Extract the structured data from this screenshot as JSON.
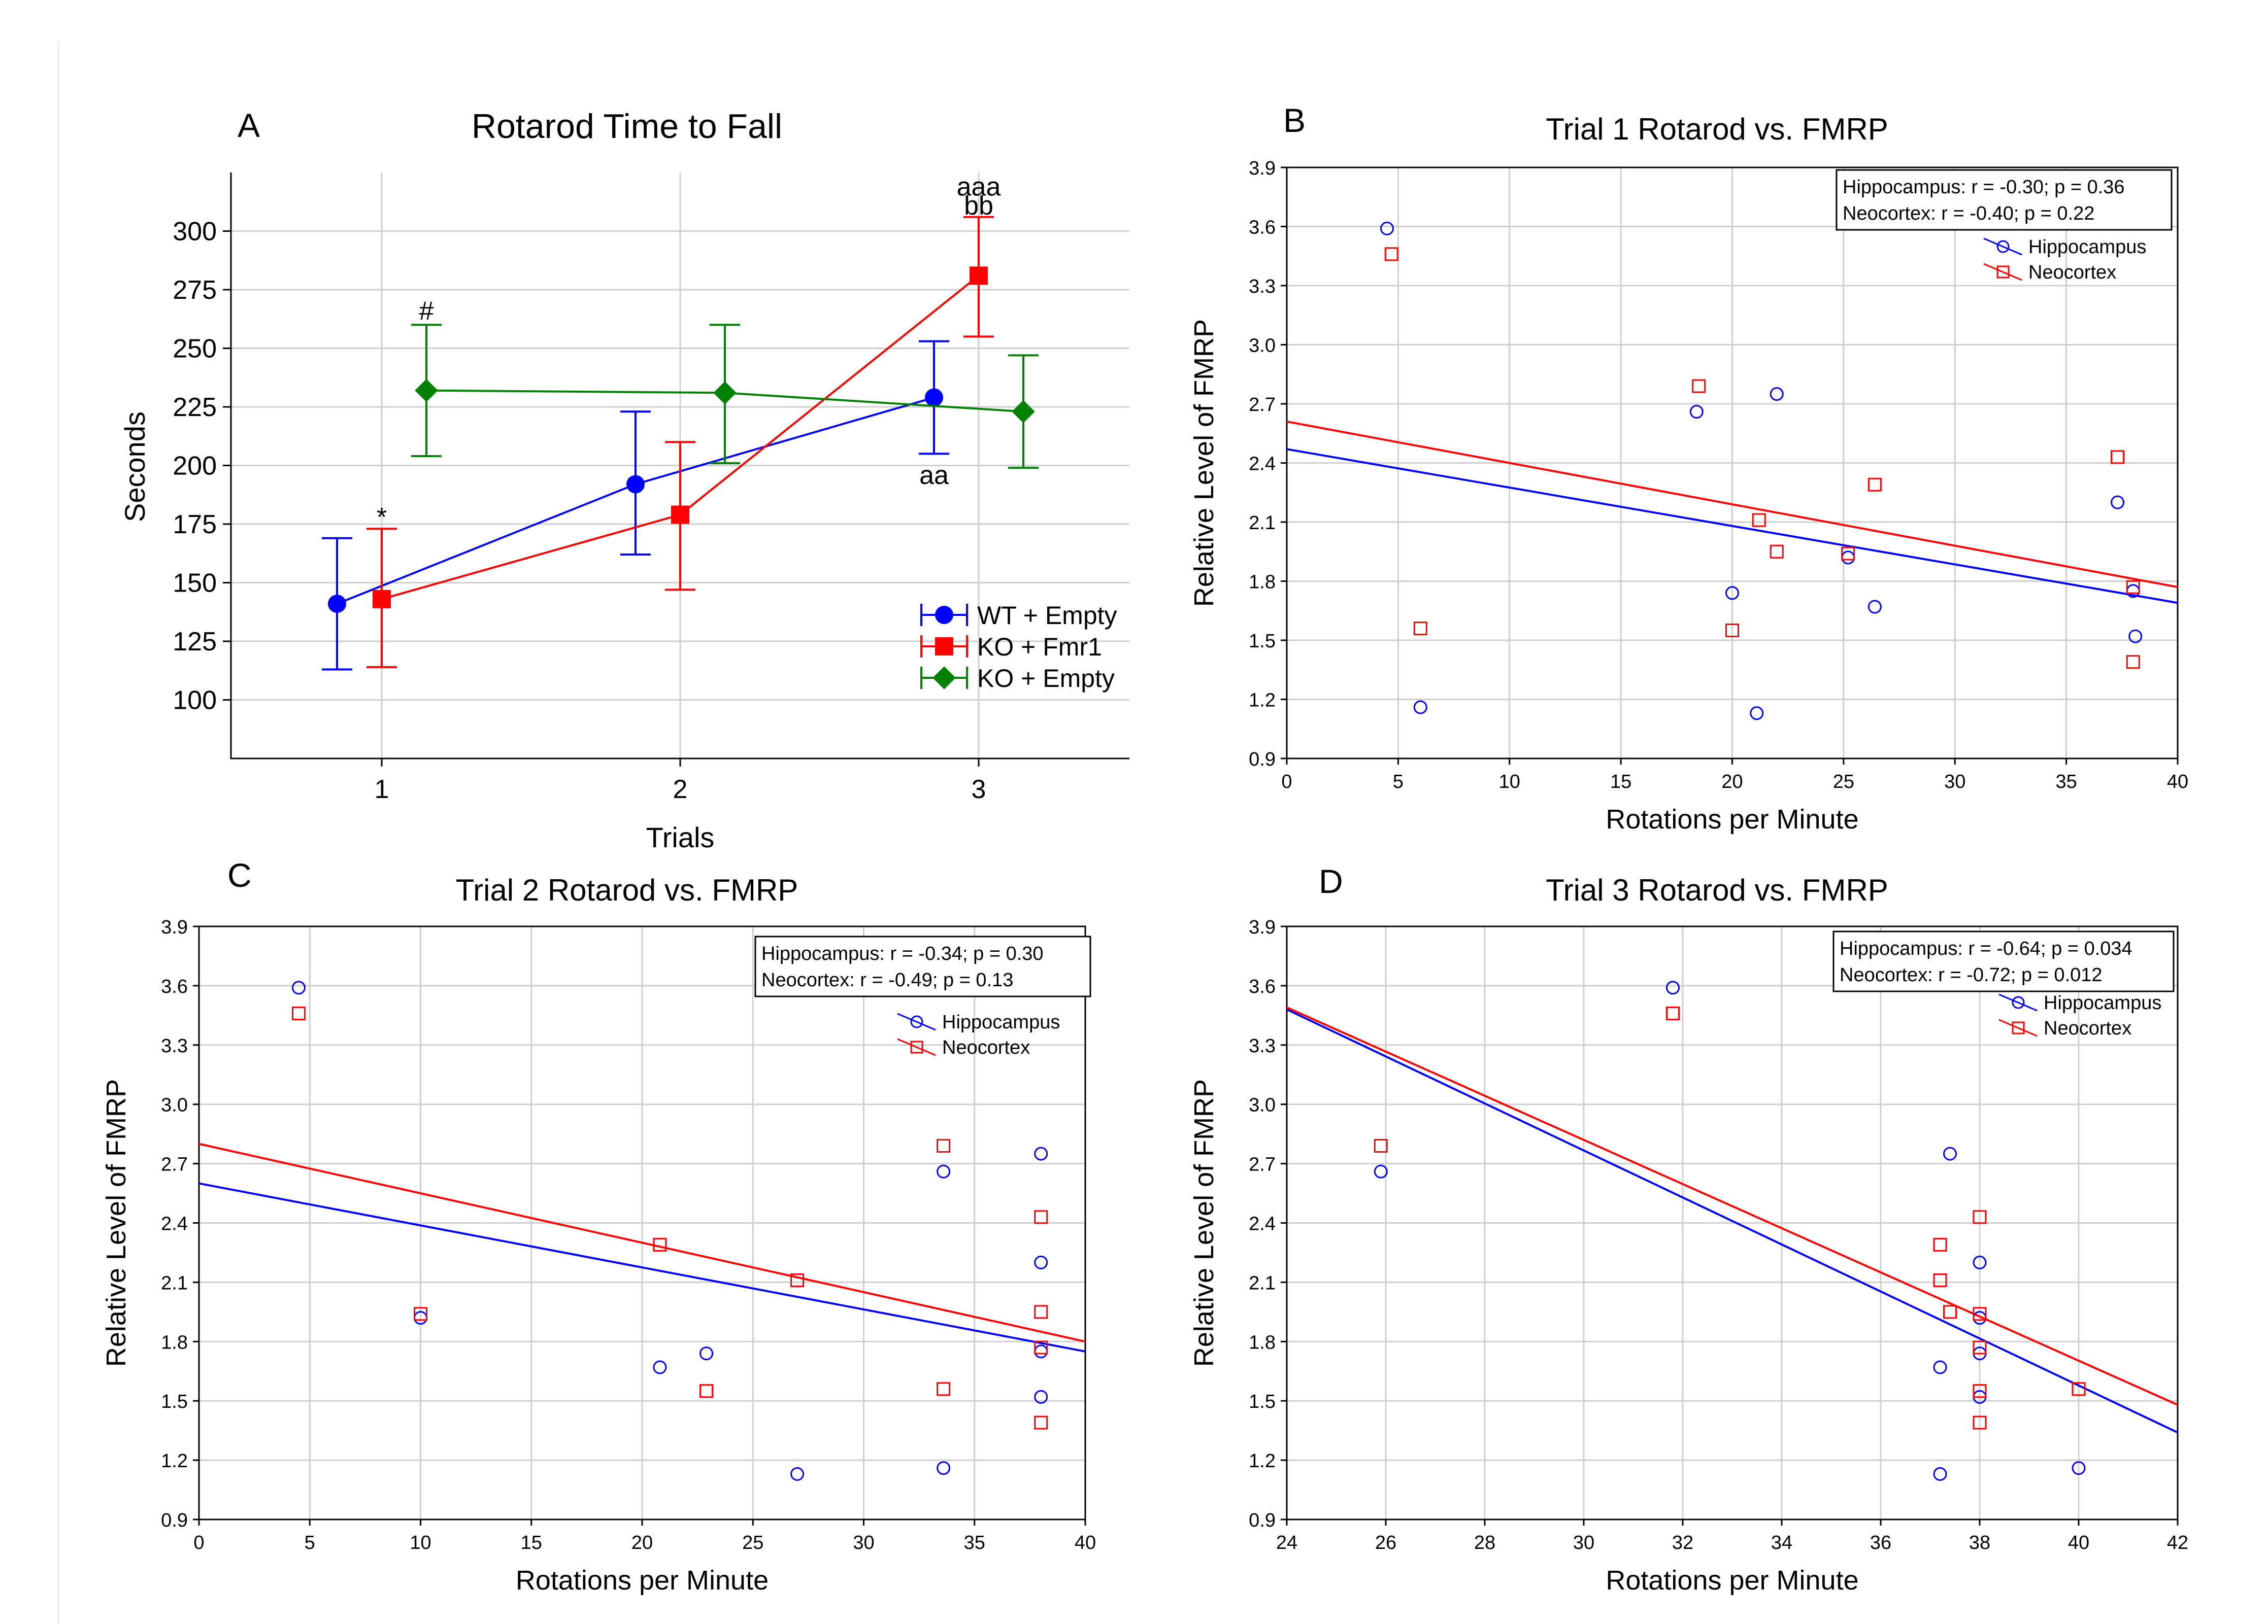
{
  "chart_data": [
    {
      "panel": "A",
      "type": "line",
      "title": "Rotarod Time to Fall",
      "xlabel": "Trials",
      "ylabel": "Seconds",
      "categories": [
        "1",
        "2",
        "3"
      ],
      "ylim": [
        75,
        325
      ],
      "yticks": [
        100,
        125,
        150,
        175,
        200,
        225,
        250,
        275,
        300
      ],
      "grid": true,
      "legend_position": "bottom-right",
      "series": [
        {
          "name": "WT + Empty",
          "color": "#0000ff",
          "marker": "circle",
          "values": [
            141,
            192,
            229
          ],
          "err_low": [
            113,
            162,
            205
          ],
          "err_high": [
            169,
            223,
            253
          ]
        },
        {
          "name": "KO + Fmr1",
          "color": "#ff0000",
          "marker": "square",
          "values": [
            143,
            179,
            281
          ],
          "err_low": [
            114,
            147,
            255
          ],
          "err_high": [
            173,
            210,
            306
          ]
        },
        {
          "name": "KO + Empty",
          "color": "#008000",
          "marker": "diamond",
          "values": [
            232,
            231,
            223
          ],
          "err_low": [
            204,
            201,
            199
          ],
          "err_high": [
            260,
            260,
            247
          ]
        }
      ],
      "annotations": [
        {
          "text": "#",
          "category": 1,
          "series": "KO + Empty",
          "y": 266
        },
        {
          "text": "*",
          "category": 1,
          "series": "KO + Fmr1",
          "y": 178
        },
        {
          "text": "aaa",
          "category": 3,
          "series": "KO + Fmr1",
          "y": 319
        },
        {
          "text": "bb",
          "category": 3,
          "series": "KO + Fmr1",
          "y": 311
        },
        {
          "text": "aa",
          "category": 3,
          "series": "WT + Empty",
          "y": 196
        }
      ]
    },
    {
      "panel": "B",
      "type": "scatter",
      "title": "Trial 1 Rotarod vs. FMRP",
      "xlabel": "Rotations per Minute",
      "ylabel": "Relative Level of FMRP",
      "xlim": [
        0,
        40
      ],
      "xticks": [
        0,
        5,
        10,
        15,
        20,
        25,
        30,
        35,
        40
      ],
      "ylim": [
        0.9,
        3.9
      ],
      "yticks": [
        "0.9",
        "1.2",
        "1.5",
        "1.8",
        "2.1",
        "2.4",
        "2.7",
        "3.0",
        "3.3",
        "3.6",
        "3.9"
      ],
      "grid": true,
      "legend_position": "top-right",
      "stats": [
        "Hippocampus: r = -0.30; p = 0.36",
        "Neocortex:      r = -0.40; p = 0.22"
      ],
      "series": [
        {
          "name": "Hippocampus",
          "color": "#0000ff",
          "marker": "circle",
          "x": [
            4.5,
            6.0,
            18.4,
            20.0,
            21.1,
            22.0,
            25.2,
            26.4,
            37.3,
            38.0,
            38.1
          ],
          "y": [
            3.59,
            1.16,
            2.66,
            1.74,
            1.13,
            2.75,
            1.92,
            1.67,
            2.2,
            1.75,
            1.52
          ],
          "fit": {
            "x": [
              0,
              40
            ],
            "y": [
              2.47,
              1.69
            ]
          }
        },
        {
          "name": "Neocortex",
          "color": "#ff0000",
          "marker": "square",
          "x": [
            4.7,
            6.0,
            18.5,
            20.0,
            21.2,
            22.0,
            25.2,
            26.4,
            37.3,
            38.0,
            38.0
          ],
          "y": [
            3.46,
            1.56,
            2.79,
            1.55,
            2.11,
            1.95,
            1.94,
            2.29,
            2.43,
            1.77,
            1.39
          ],
          "fit": {
            "x": [
              0,
              40
            ],
            "y": [
              2.61,
              1.77
            ]
          }
        }
      ]
    },
    {
      "panel": "C",
      "type": "scatter",
      "title": "Trial 2 Rotarod vs. FMRP",
      "xlabel": "Rotations per Minute",
      "ylabel": "Relative Level of FMRP",
      "xlim": [
        0,
        40
      ],
      "xticks": [
        0,
        5,
        10,
        15,
        20,
        25,
        30,
        35,
        40
      ],
      "ylim": [
        0.9,
        3.9
      ],
      "yticks": [
        "0.9",
        "1.2",
        "1.5",
        "1.8",
        "2.1",
        "2.4",
        "2.7",
        "3.0",
        "3.3",
        "3.6",
        "3.9"
      ],
      "grid": true,
      "legend_position": "top-right",
      "stats": [
        "Hippocampus: r = -0.34; p = 0.30",
        "Neocortex:      r = -0.49; p = 0.13"
      ],
      "series": [
        {
          "name": "Hippocampus",
          "color": "#0000ff",
          "marker": "circle",
          "x": [
            4.5,
            10.0,
            20.8,
            22.9,
            27.0,
            33.6,
            33.6,
            38.0,
            38.0,
            38.0,
            38.0
          ],
          "y": [
            3.59,
            1.92,
            1.67,
            1.74,
            1.13,
            2.66,
            1.16,
            2.75,
            2.2,
            1.75,
            1.52
          ],
          "fit": {
            "x": [
              0,
              40
            ],
            "y": [
              2.6,
              1.75
            ]
          }
        },
        {
          "name": "Neocortex",
          "color": "#ff0000",
          "marker": "square",
          "x": [
            4.5,
            10.0,
            20.8,
            22.9,
            27.0,
            33.6,
            33.6,
            38.0,
            38.0,
            38.0,
            38.0
          ],
          "y": [
            3.46,
            1.94,
            2.29,
            1.55,
            2.11,
            2.79,
            1.56,
            2.43,
            1.95,
            1.77,
            1.39
          ],
          "fit": {
            "x": [
              0,
              40
            ],
            "y": [
              2.8,
              1.8
            ]
          }
        }
      ]
    },
    {
      "panel": "D",
      "type": "scatter",
      "title": "Trial 3 Rotarod vs. FMRP",
      "xlabel": "Rotations per Minute",
      "ylabel": "Relative Level of FMRP",
      "xlim": [
        24,
        42
      ],
      "xticks": [
        24,
        26,
        28,
        30,
        32,
        34,
        36,
        38,
        40,
        42
      ],
      "ylim": [
        0.9,
        3.9
      ],
      "yticks": [
        "0.9",
        "1.2",
        "1.5",
        "1.8",
        "2.1",
        "2.4",
        "2.7",
        "3.0",
        "3.3",
        "3.6",
        "3.9"
      ],
      "grid": true,
      "legend_position": "top-right",
      "stats": [
        "Hippocampus: r = -0.64; p = 0.034",
        "Neocortex:      r = -0.72; p = 0.012"
      ],
      "series": [
        {
          "name": "Hippocampus",
          "color": "#0000ff",
          "marker": "circle",
          "x": [
            25.9,
            31.8,
            37.2,
            37.2,
            37.4,
            38.0,
            38.0,
            38.0,
            38.0,
            40.0
          ],
          "y": [
            2.66,
            3.59,
            1.67,
            1.13,
            2.75,
            2.2,
            1.92,
            1.74,
            1.52,
            1.16
          ],
          "fit": {
            "x": [
              24,
              42
            ],
            "y": [
              3.48,
              1.34
            ]
          }
        },
        {
          "name": "Neocortex",
          "color": "#ff0000",
          "marker": "square",
          "x": [
            25.9,
            31.8,
            37.2,
            37.2,
            37.4,
            38.0,
            38.0,
            38.0,
            38.0,
            38.0,
            40.0
          ],
          "y": [
            2.79,
            3.46,
            2.29,
            2.11,
            1.95,
            2.43,
            1.94,
            1.77,
            1.55,
            1.39,
            1.56
          ],
          "fit": {
            "x": [
              24,
              42
            ],
            "y": [
              3.49,
              1.48
            ]
          }
        }
      ]
    }
  ]
}
